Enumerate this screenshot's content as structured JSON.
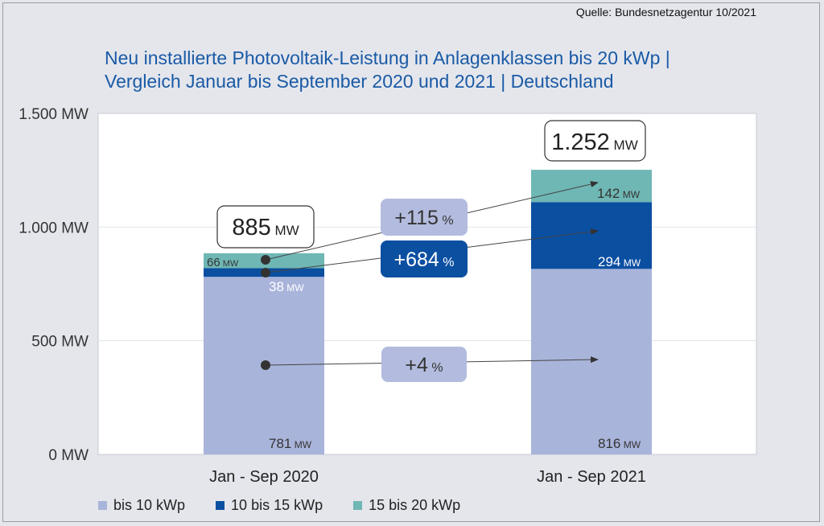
{
  "source": "Quelle: Bundesnetzagentur 10/2021",
  "title_line1": "Neu installierte Photovoltaik-Leistung in Anlagenklassen bis 20 kWp |",
  "title_line2": "Vergleich Januar bis September 2020 und 2021 | Deutschland",
  "colors": {
    "bis10": "#a9b4da",
    "10bis15": "#0b4fa1",
    "15bis20": "#6fb7b4",
    "change_light": "#b3bcde",
    "change_dark": "#0b4fa1"
  },
  "chart_data": {
    "type": "bar",
    "stacked": true,
    "title": "Neu installierte Photovoltaik-Leistung in Anlagenklassen bis 20 kWp | Vergleich Januar bis September 2020 und 2021 | Deutschland",
    "categories": [
      "Jan - Sep 2020",
      "Jan - Sep 2021"
    ],
    "series": [
      {
        "name": "bis 10 kWp",
        "values": [
          781,
          816
        ]
      },
      {
        "name": "10 bis 15 kWp",
        "values": [
          38,
          294
        ]
      },
      {
        "name": "15 bis 20 kWp",
        "values": [
          66,
          142
        ]
      }
    ],
    "totals": [
      885,
      1252
    ],
    "total_labels": [
      {
        "num": "885",
        "unit": "MW"
      },
      {
        "num": "1.252",
        "unit": "MW"
      }
    ],
    "segment_labels": [
      [
        {
          "num": "781",
          "unit": "MW"
        },
        {
          "num": "38",
          "unit": "MW"
        },
        {
          "num": "66",
          "unit": "MW"
        }
      ],
      [
        {
          "num": "816",
          "unit": "MW"
        },
        {
          "num": "294",
          "unit": "MW"
        },
        {
          "num": "142",
          "unit": "MW"
        }
      ]
    ],
    "changes": [
      {
        "series": "15 bis 20 kWp",
        "num": "+115",
        "unit": "%"
      },
      {
        "series": "10 bis 15 kWp",
        "num": "+684",
        "unit": "%"
      },
      {
        "series": "bis 10 kWp",
        "num": "+4",
        "unit": "%"
      }
    ],
    "ylim": [
      0,
      1500
    ],
    "yticks": [
      0,
      500,
      1000,
      1500
    ],
    "ytick_labels": [
      "0 MW",
      "500 MW",
      "1.000 MW",
      "1.500 MW"
    ],
    "xlabel": "",
    "ylabel": "",
    "grid": true,
    "legend": "bottom"
  }
}
